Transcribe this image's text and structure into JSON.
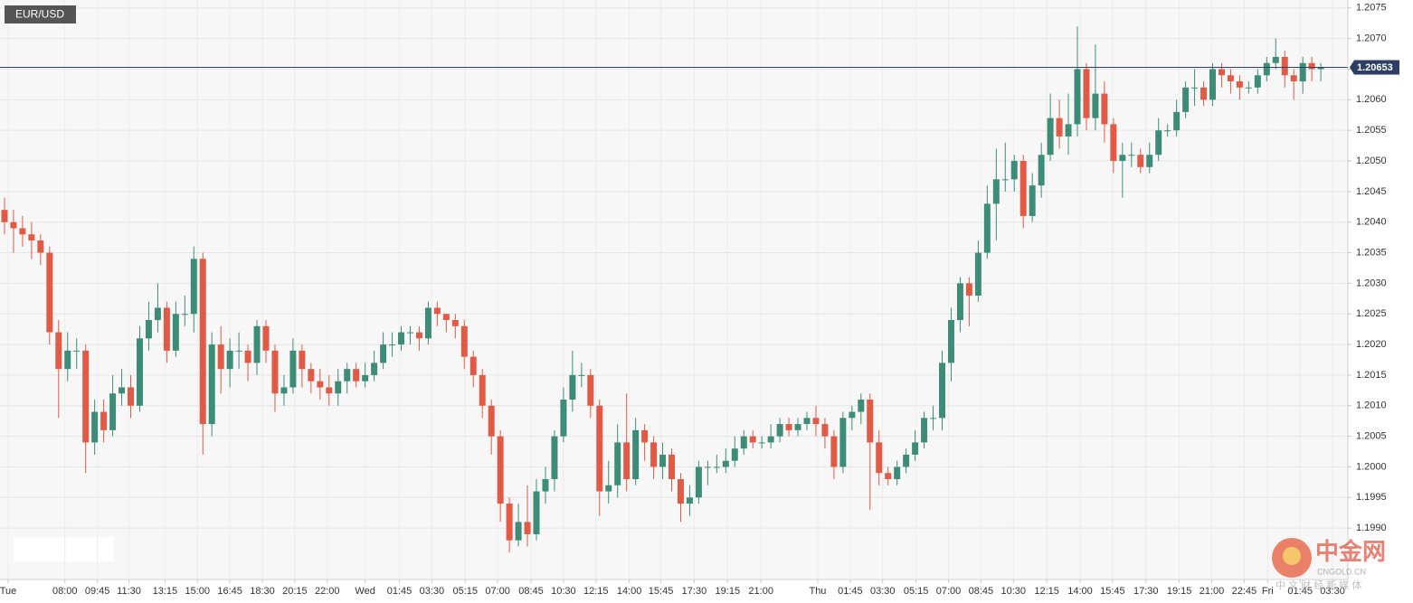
{
  "chart_data": {
    "type": "candlestick",
    "symbol": "EUR/USD",
    "ylim": [
      1.19816,
      1.20763
    ],
    "yticks": [
      {
        "value": 1.199,
        "label": "1.1990"
      },
      1.1995,
      {
        "value": 1.2,
        "label": "1.2000"
      },
      1.2005,
      {
        "value": 1.201,
        "label": "1.2010"
      },
      1.2015,
      {
        "value": 1.202,
        "label": "1.2020"
      },
      1.2025,
      {
        "value": 1.203,
        "label": "1.2030"
      },
      1.2035,
      {
        "value": 1.204,
        "label": "1.2040"
      },
      1.2045,
      {
        "value": 1.205,
        "label": "1.2050"
      },
      1.2055,
      {
        "value": 1.206,
        "label": "1.2060"
      },
      1.2065,
      {
        "value": 1.207,
        "label": "1.2070"
      },
      1.2075
    ],
    "xlim": [
      -0.5,
      149
    ],
    "xticks": [
      {
        "value": 0.4,
        "label": "Tue"
      },
      {
        "value": 6.7,
        "label": "08:00"
      },
      {
        "value": 10.3,
        "label": "09:45"
      },
      {
        "value": 13.8,
        "label": "11:30"
      },
      {
        "value": 17.8,
        "label": "13:15"
      },
      {
        "value": 21.4,
        "label": "15:00"
      },
      {
        "value": 25.0,
        "label": "16:45"
      },
      {
        "value": 28.6,
        "label": "18:30"
      },
      {
        "value": 32.2,
        "label": "20:15"
      },
      {
        "value": 35.8,
        "label": "22:00"
      },
      {
        "value": 40.0,
        "label": "Wed"
      },
      {
        "value": 43.8,
        "label": "01:45"
      },
      {
        "value": 47.4,
        "label": "03:30"
      },
      {
        "value": 51.1,
        "label": "05:15"
      },
      {
        "value": 54.7,
        "label": "07:00"
      },
      {
        "value": 58.4,
        "label": "08:45"
      },
      {
        "value": 62.0,
        "label": "10:30"
      },
      {
        "value": 65.6,
        "label": "12:15"
      },
      {
        "value": 69.3,
        "label": "14:00"
      },
      {
        "value": 72.8,
        "label": "15:45"
      },
      {
        "value": 76.5,
        "label": "17:30"
      },
      {
        "value": 80.2,
        "label": "19:15"
      },
      {
        "value": 83.9,
        "label": "21:00"
      },
      {
        "value": 90.2,
        "label": "Thu"
      },
      {
        "value": 93.8,
        "label": "01:45"
      },
      {
        "value": 97.4,
        "label": "03:30"
      },
      {
        "value": 101.1,
        "label": "05:15"
      },
      {
        "value": 104.7,
        "label": "07:00"
      },
      {
        "value": 108.3,
        "label": "08:45"
      },
      {
        "value": 111.9,
        "label": "10:30"
      },
      {
        "value": 115.6,
        "label": "12:15"
      },
      {
        "value": 119.3,
        "label": "14:00"
      },
      {
        "value": 122.9,
        "label": "15:45"
      },
      {
        "value": 126.6,
        "label": "17:30"
      },
      {
        "value": 130.3,
        "label": "19:15"
      },
      {
        "value": 133.9,
        "label": "21:00"
      },
      {
        "value": 137.5,
        "label": "22:45"
      },
      {
        "value": 140.1,
        "label": "Fri"
      },
      {
        "value": 143.7,
        "label": "01:45"
      },
      {
        "value": 147.3,
        "label": "03:30"
      }
    ],
    "up_color": "#3d8c77",
    "down_color": "#e05a46",
    "grid": true,
    "price_line": 1.20653,
    "price_line_color": "#2c3d66",
    "open": [
      1.2042,
      1.204,
      1.2039,
      1.2038,
      1.2037,
      1.2035,
      1.2022,
      1.2016,
      1.2019,
      1.2019,
      1.2004,
      1.2009,
      1.2006,
      1.2012,
      1.2013,
      1.201,
      1.2021,
      1.2024,
      1.2026,
      1.2019,
      1.2025,
      1.2025,
      1.2034,
      1.2007,
      1.202,
      1.2016,
      1.2019,
      1.2019,
      1.2017,
      1.2023,
      1.2019,
      1.2012,
      1.2013,
      1.2019,
      1.2016,
      1.2014,
      1.2013,
      1.2012,
      1.2014,
      1.2016,
      1.2014,
      1.2015,
      1.2017,
      1.202,
      1.202,
      1.2022,
      1.2022,
      1.2021,
      1.2026,
      1.2025,
      1.2024,
      1.2023,
      1.2018,
      1.2015,
      1.201,
      1.2005,
      1.1994,
      1.1988,
      1.1991,
      1.1989,
      1.1996,
      1.1998,
      1.2005,
      1.2011,
      1.2015,
      1.2015,
      1.201,
      1.1996,
      1.1997,
      1.2004,
      1.1998,
      1.2006,
      1.2004,
      1.2,
      1.2002,
      1.1998,
      1.1994,
      1.1995,
      1.2,
      1.2,
      1.2,
      1.2001,
      1.2003,
      1.2005,
      1.2004,
      1.2004,
      1.2005,
      1.2007,
      1.2006,
      1.2007,
      1.2008,
      1.2007,
      1.2005,
      1.2,
      1.2008,
      1.2009,
      1.2011,
      1.2004,
      1.1999,
      1.1998,
      1.2,
      1.2002,
      1.2004,
      1.2008,
      1.2008,
      1.2017,
      1.2024,
      1.203,
      1.2028,
      1.2035,
      1.2043,
      1.2047,
      1.2047,
      1.205,
      1.2041,
      1.2046,
      1.2051,
      1.2057,
      1.2054,
      1.2056,
      1.2065,
      1.2057,
      1.2061,
      1.2056,
      1.205,
      1.2051,
      1.2051,
      1.2049,
      1.2051,
      1.2055,
      1.2055,
      1.2058,
      1.2062,
      1.2062,
      1.206,
      1.2065,
      1.2064,
      1.2063,
      1.2062,
      1.2062,
      1.2064,
      1.2066,
      1.2067,
      1.2064,
      1.2063,
      1.2066,
      1.2065
    ],
    "high": [
      1.2044,
      1.2042,
      1.2041,
      1.204,
      1.2038,
      1.2036,
      1.2024,
      1.2022,
      1.2021,
      1.202,
      1.2011,
      1.2011,
      1.2015,
      1.2016,
      1.2015,
      1.2023,
      1.2027,
      1.203,
      1.2027,
      1.2027,
      1.2028,
      1.2036,
      1.2035,
      1.2022,
      1.2023,
      1.2021,
      1.2022,
      1.202,
      1.2024,
      1.2024,
      1.202,
      1.2015,
      1.2021,
      1.202,
      1.2017,
      1.2016,
      1.2015,
      1.2016,
      1.2017,
      1.2017,
      1.2017,
      1.2019,
      1.2022,
      1.2022,
      1.2023,
      1.2023,
      1.2023,
      1.2027,
      1.2027,
      1.2025,
      1.2025,
      1.2024,
      1.2019,
      1.2016,
      1.2011,
      1.2006,
      1.1995,
      1.1994,
      1.1997,
      1.1998,
      1.2,
      1.2006,
      1.2013,
      1.2019,
      1.2017,
      1.2016,
      1.2011,
      1.2001,
      1.2007,
      1.2012,
      1.2008,
      1.2007,
      1.2005,
      1.2004,
      1.2003,
      1.1999,
      1.1997,
      1.2001,
      1.2001,
      1.2002,
      1.2003,
      1.2005,
      1.2006,
      1.2006,
      1.2005,
      1.2007,
      1.2008,
      1.2008,
      1.2008,
      1.2009,
      1.201,
      1.2008,
      1.2006,
      1.2009,
      1.201,
      1.2012,
      1.2012,
      1.2006,
      1.2,
      1.2001,
      1.2003,
      1.2006,
      1.2009,
      1.201,
      1.2019,
      1.2026,
      1.2031,
      1.2031,
      1.2037,
      1.2046,
      1.2052,
      1.2053,
      1.2051,
      1.2051,
      1.2048,
      1.2053,
      1.2061,
      1.206,
      1.2061,
      1.2072,
      1.2066,
      1.2069,
      1.2063,
      1.2057,
      1.2053,
      1.2053,
      1.2052,
      1.2053,
      1.2057,
      1.2056,
      1.206,
      1.2063,
      1.2065,
      1.2063,
      1.2066,
      1.2066,
      1.2065,
      1.2064,
      1.2063,
      1.2065,
      1.2067,
      1.207,
      1.2068,
      1.2065,
      1.2067,
      1.2067,
      1.2066
    ],
    "low": [
      1.2038,
      1.2035,
      1.2036,
      1.2034,
      1.2033,
      1.202,
      1.2008,
      1.2014,
      1.2016,
      1.1999,
      1.2002,
      1.2004,
      1.2005,
      1.201,
      1.2008,
      1.2009,
      1.2019,
      1.2022,
      1.2017,
      1.2018,
      1.2023,
      1.2022,
      1.2002,
      1.2005,
      1.2012,
      1.2013,
      1.2016,
      1.2014,
      1.2015,
      1.2017,
      1.2009,
      1.201,
      1.2012,
      1.2013,
      1.2012,
      1.2011,
      1.201,
      1.201,
      1.2012,
      1.2013,
      1.2013,
      1.2014,
      1.2016,
      1.2018,
      1.2019,
      1.202,
      1.2019,
      1.202,
      1.2023,
      1.2022,
      1.2021,
      1.2016,
      1.2013,
      1.2008,
      1.2002,
      1.1991,
      1.1986,
      1.1987,
      1.1987,
      1.1988,
      1.1994,
      1.1996,
      1.2004,
      1.2009,
      1.2013,
      1.2008,
      1.1992,
      1.1994,
      1.1995,
      1.1996,
      1.1997,
      1.2001,
      1.1998,
      1.1998,
      1.1996,
      1.1991,
      1.1992,
      1.1994,
      1.1997,
      1.1999,
      1.1999,
      1.2,
      1.2002,
      1.2003,
      1.2003,
      1.2003,
      1.2004,
      1.2005,
      1.2005,
      1.2006,
      1.2005,
      1.2003,
      1.1998,
      1.1999,
      1.2006,
      1.2007,
      1.1993,
      1.1997,
      1.1997,
      1.1997,
      1.1999,
      1.2001,
      1.2003,
      1.2006,
      1.2006,
      1.2014,
      1.2022,
      1.2023,
      1.2027,
      1.2034,
      1.2037,
      1.2045,
      1.2045,
      1.2039,
      1.204,
      1.2044,
      1.205,
      1.2052,
      1.2051,
      1.2054,
      1.2055,
      1.2055,
      1.2053,
      1.2048,
      1.2044,
      1.2049,
      1.2048,
      1.2048,
      1.205,
      1.2054,
      1.2054,
      1.2057,
      1.2059,
      1.2059,
      1.2059,
      1.2062,
      1.2061,
      1.206,
      1.2061,
      1.2061,
      1.2063,
      1.2065,
      1.2062,
      1.206,
      1.2061,
      1.2063,
      1.2063
    ],
    "close": [
      1.204,
      1.2039,
      1.2038,
      1.2037,
      1.2035,
      1.2022,
      1.2016,
      1.2019,
      1.2019,
      1.2004,
      1.2009,
      1.2006,
      1.2012,
      1.2013,
      1.201,
      1.2021,
      1.2024,
      1.2026,
      1.2019,
      1.2025,
      1.2025,
      1.2034,
      1.2007,
      1.202,
      1.2016,
      1.2019,
      1.2019,
      1.2017,
      1.2023,
      1.2019,
      1.2012,
      1.2013,
      1.2019,
      1.2016,
      1.2014,
      1.2013,
      1.2012,
      1.2014,
      1.2016,
      1.2014,
      1.2015,
      1.2017,
      1.202,
      1.202,
      1.2022,
      1.2022,
      1.2021,
      1.2026,
      1.2025,
      1.2024,
      1.2023,
      1.2018,
      1.2015,
      1.201,
      1.2005,
      1.1994,
      1.1988,
      1.1991,
      1.1989,
      1.1996,
      1.1998,
      1.2005,
      1.2011,
      1.2015,
      1.2015,
      1.201,
      1.1996,
      1.1997,
      1.2004,
      1.1998,
      1.2006,
      1.2004,
      1.2,
      1.2002,
      1.1998,
      1.1994,
      1.1995,
      1.2,
      1.2,
      1.2,
      1.2001,
      1.2003,
      1.2005,
      1.2004,
      1.2004,
      1.2005,
      1.2007,
      1.2006,
      1.2007,
      1.2008,
      1.2007,
      1.2005,
      1.2,
      1.2008,
      1.2009,
      1.2011,
      1.2004,
      1.1999,
      1.1998,
      1.2,
      1.2002,
      1.2004,
      1.2008,
      1.2008,
      1.2017,
      1.2024,
      1.203,
      1.2028,
      1.2035,
      1.2043,
      1.2047,
      1.2047,
      1.205,
      1.2041,
      1.2046,
      1.2051,
      1.2057,
      1.2054,
      1.2056,
      1.2065,
      1.2057,
      1.2061,
      1.2056,
      1.205,
      1.2051,
      1.2051,
      1.2049,
      1.2051,
      1.2055,
      1.2055,
      1.2058,
      1.2062,
      1.2062,
      1.206,
      1.2065,
      1.2064,
      1.2063,
      1.2062,
      1.2062,
      1.2064,
      1.2066,
      1.2067,
      1.2064,
      1.2063,
      1.2066,
      1.2065,
      1.20653
    ]
  },
  "watermark": {
    "brand": "中金网",
    "site": "CNGOLD.CN",
    "slogan": "中 文 财 经 新 媒 体"
  }
}
